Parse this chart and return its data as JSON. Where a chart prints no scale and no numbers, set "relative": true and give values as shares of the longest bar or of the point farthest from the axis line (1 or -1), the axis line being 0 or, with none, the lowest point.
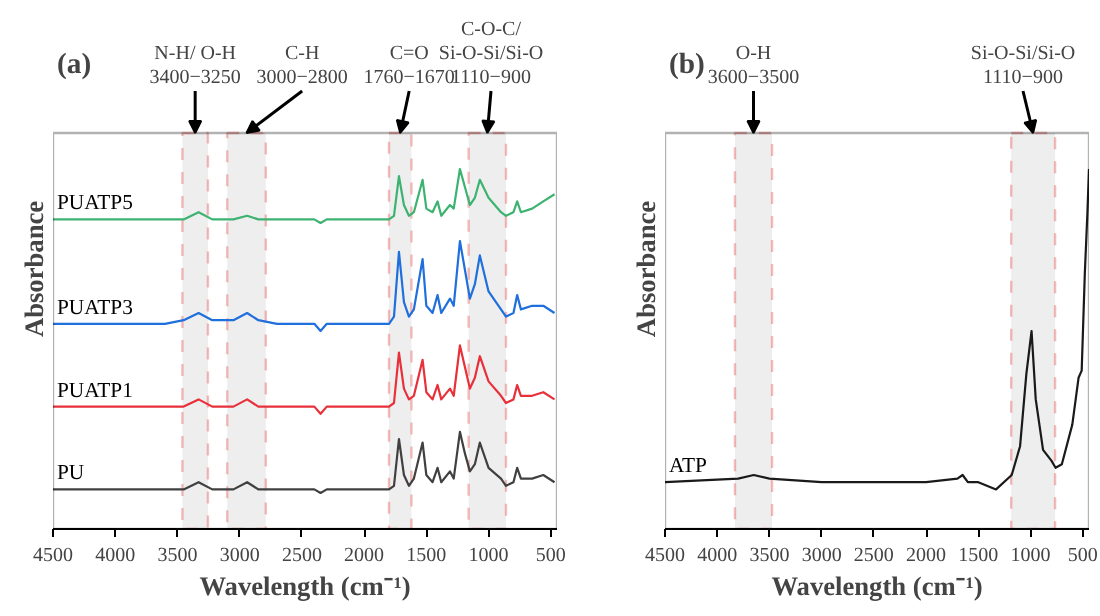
{
  "chart_data": [
    {
      "type": "line",
      "title": "(a)",
      "xlabel": "Wavelength (cm⁻¹)",
      "ylabel": "Absorbance",
      "relative": true,
      "tick_labels": "x",
      "grid": false,
      "xlim": [
        4500,
        450
      ],
      "xticks": [
        4500,
        4000,
        3500,
        3000,
        2500,
        2000,
        1500,
        1000,
        500
      ],
      "x": [
        4500,
        3600,
        3450,
        3330,
        3220,
        3050,
        2940,
        2850,
        2700,
        2400,
        2350,
        2300,
        1800,
        1760,
        1720,
        1680,
        1640,
        1600,
        1530,
        1500,
        1450,
        1410,
        1380,
        1310,
        1280,
        1230,
        1190,
        1150,
        1110,
        1070,
        1000,
        900,
        860,
        800,
        770,
        740,
        650,
        560,
        470
      ],
      "series": [
        {
          "name": "PU",
          "color": "#404040",
          "values": [
            0.11,
            0.11,
            0.11,
            0.13,
            0.11,
            0.11,
            0.13,
            0.11,
            0.11,
            0.11,
            0.1,
            0.11,
            0.11,
            0.12,
            0.25,
            0.15,
            0.12,
            0.14,
            0.24,
            0.15,
            0.13,
            0.17,
            0.13,
            0.16,
            0.14,
            0.27,
            0.21,
            0.16,
            0.18,
            0.24,
            0.17,
            0.14,
            0.12,
            0.13,
            0.17,
            0.14,
            0.14,
            0.15,
            0.13
          ]
        },
        {
          "name": "PUATP1",
          "color": "#e8303a",
          "values": [
            0.34,
            0.34,
            0.34,
            0.36,
            0.34,
            0.34,
            0.36,
            0.34,
            0.34,
            0.34,
            0.32,
            0.34,
            0.34,
            0.35,
            0.49,
            0.39,
            0.36,
            0.37,
            0.47,
            0.38,
            0.36,
            0.4,
            0.36,
            0.39,
            0.37,
            0.51,
            0.45,
            0.39,
            0.42,
            0.48,
            0.41,
            0.37,
            0.35,
            0.36,
            0.4,
            0.37,
            0.37,
            0.38,
            0.36
          ]
        },
        {
          "name": "PUATP3",
          "color": "#1f6fdc",
          "values": [
            0.57,
            0.57,
            0.58,
            0.6,
            0.58,
            0.58,
            0.6,
            0.58,
            0.57,
            0.57,
            0.55,
            0.57,
            0.57,
            0.59,
            0.77,
            0.63,
            0.59,
            0.61,
            0.75,
            0.62,
            0.6,
            0.65,
            0.6,
            0.64,
            0.62,
            0.8,
            0.72,
            0.64,
            0.68,
            0.76,
            0.66,
            0.61,
            0.59,
            0.6,
            0.65,
            0.61,
            0.62,
            0.62,
            0.6
          ]
        },
        {
          "name": "PUATP5",
          "color": "#3cb371",
          "values": [
            0.86,
            0.86,
            0.86,
            0.88,
            0.86,
            0.86,
            0.87,
            0.86,
            0.86,
            0.86,
            0.85,
            0.86,
            0.86,
            0.87,
            0.98,
            0.9,
            0.87,
            0.88,
            0.97,
            0.89,
            0.88,
            0.91,
            0.87,
            0.9,
            0.89,
            1.0,
            0.95,
            0.9,
            0.92,
            0.97,
            0.92,
            0.88,
            0.87,
            0.88,
            0.91,
            0.88,
            0.89,
            0.91,
            0.93
          ]
        }
      ],
      "bands": [
        {
          "axis": "x",
          "from": 3460,
          "to": 3255,
          "label": "N-H/ O-H\n3400−3250",
          "color": "#eeeeee"
        },
        {
          "axis": "x",
          "from": 3100,
          "to": 2790,
          "label": "C-H\n3000−2800",
          "color": "#eeeeee"
        },
        {
          "axis": "x",
          "from": 1800,
          "to": 1620,
          "label": "C=O\n1760−1670",
          "color": "#eeeeee"
        },
        {
          "axis": "x",
          "from": 1160,
          "to": 860,
          "label": "C-O-C/Si-O-Si/Si-O\n1110−900",
          "color": "#eeeeee"
        }
      ]
    },
    {
      "type": "line",
      "title": "(b)",
      "xlabel": "Wavelength (cm⁻¹)",
      "ylabel": "Absorbance",
      "relative": true,
      "tick_labels": "x",
      "grid": false,
      "xlim": [
        4500,
        440
      ],
      "xticks": [
        4500,
        4000,
        3500,
        3000,
        2500,
        2000,
        1500,
        1000,
        500
      ],
      "x": [
        4500,
        3800,
        3650,
        3500,
        3000,
        2000,
        1700,
        1650,
        1600,
        1500,
        1330,
        1180,
        1100,
        1040,
        990,
        950,
        880,
        800,
        760,
        700,
        600,
        540,
        510,
        480,
        455,
        440
      ],
      "series": [
        {
          "name": "ATP",
          "color": "#1a1a1a",
          "values": [
            0.13,
            0.14,
            0.15,
            0.14,
            0.13,
            0.13,
            0.14,
            0.15,
            0.13,
            0.13,
            0.11,
            0.15,
            0.23,
            0.43,
            0.55,
            0.36,
            0.22,
            0.19,
            0.17,
            0.18,
            0.29,
            0.42,
            0.44,
            0.71,
            0.88,
            1.0
          ]
        }
      ],
      "bands": [
        {
          "axis": "x",
          "from": 3830,
          "to": 3475,
          "label": "O-H\n3600−3500",
          "color": "#eeeeee"
        },
        {
          "axis": "x",
          "from": 1185,
          "to": 765,
          "label": "Si-O-Si/Si-O\n1110−900",
          "color": "#eeeeee"
        }
      ]
    }
  ]
}
